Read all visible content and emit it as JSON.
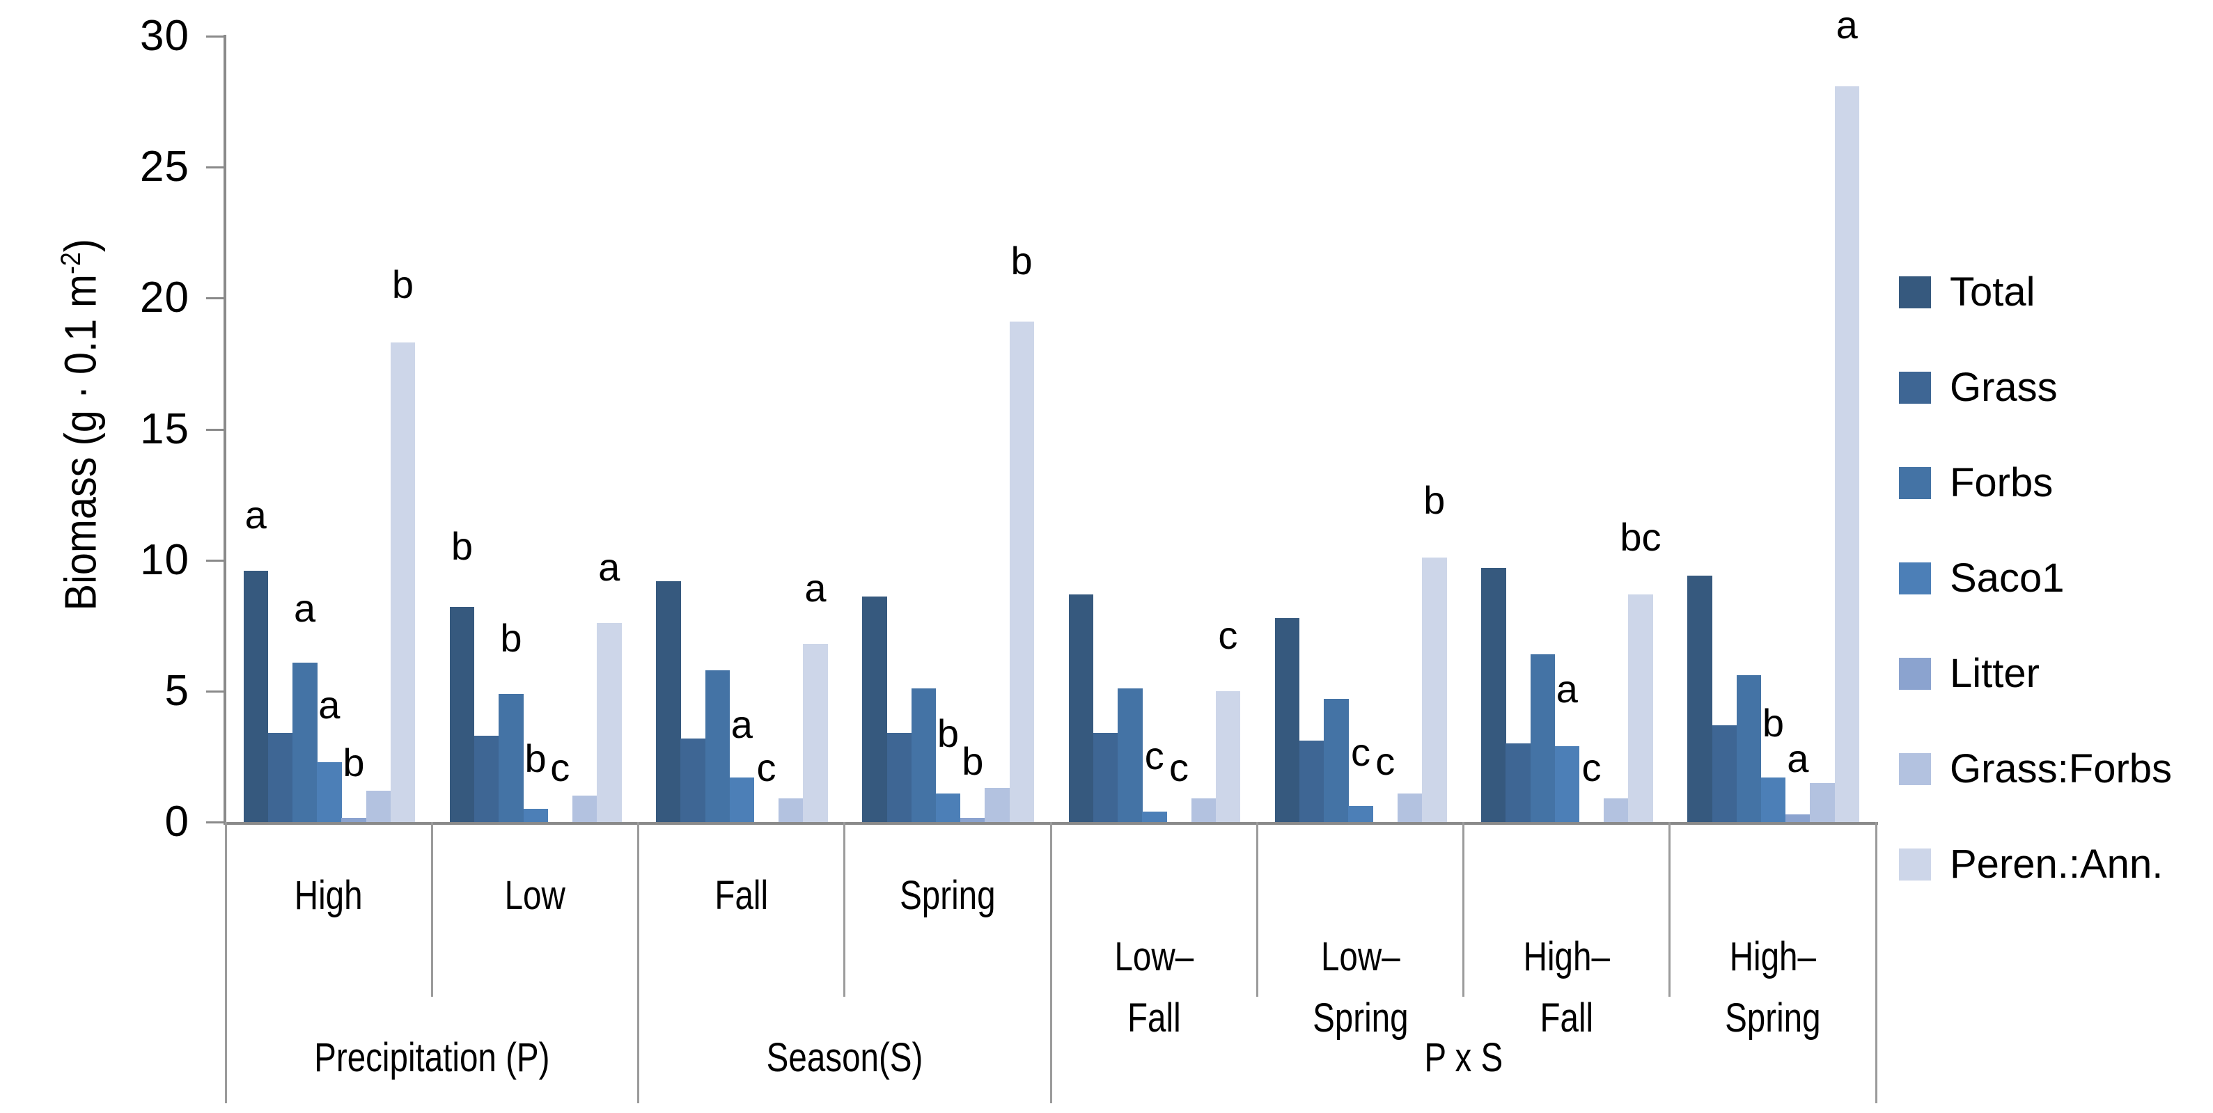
{
  "page": {
    "background": "#ffffff"
  },
  "chart_data": {
    "type": "bar",
    "title": "",
    "ylabel": {
      "prefix": "Biomass (g · 0.1 m",
      "superscript": "-2",
      "suffix": ")"
    },
    "xlabel": "",
    "ylim": [
      0,
      30
    ],
    "yticks": [
      0,
      5,
      10,
      15,
      20,
      25,
      30
    ],
    "grid": false,
    "legend_position": "right-middle",
    "axis_color": "#8a8a8a",
    "separator_color": "#9b9b9b",
    "text_color": "#000000",
    "series": [
      {
        "name": "Total",
        "color": "#36597E"
      },
      {
        "name": "Grass",
        "color": "#3E6694"
      },
      {
        "name": "Forbs",
        "color": "#4473A5"
      },
      {
        "name": "Saco1",
        "color": "#4C7FB7"
      },
      {
        "name": "Litter",
        "color": "#8BA3CF"
      },
      {
        "name": "Grass:Forbs",
        "color": "#B3C2E0"
      },
      {
        "name": "Peren.:Ann.",
        "color": "#CDD6E9"
      }
    ],
    "sections": [
      {
        "label": "Precipitation (P)",
        "groups": [
          {
            "label_lines": [
              "High"
            ],
            "values": [
              9.6,
              3.4,
              6.1,
              2.3,
              0.15,
              1.2,
              18.3
            ],
            "letters": [
              {
                "series": 0,
                "text": "a",
                "y": 11.0
              },
              {
                "series": 2,
                "text": "a",
                "y": 7.45
              },
              {
                "series": 3,
                "text": "a",
                "y": 3.75
              },
              {
                "series": 4,
                "text": "b",
                "y": 1.55
              },
              {
                "series": 6,
                "text": "b",
                "y": 19.8
              }
            ]
          },
          {
            "label_lines": [
              "Low"
            ],
            "values": [
              8.2,
              3.3,
              4.9,
              0.5,
              0,
              1.0,
              7.6
            ],
            "letters": [
              {
                "series": 0,
                "text": "b",
                "y": 9.8
              },
              {
                "series": 2,
                "text": "b",
                "y": 6.3
              },
              {
                "series": 3,
                "text": "b",
                "y": 1.7
              },
              {
                "series": 4,
                "text": "c",
                "y": 1.35
              },
              {
                "series": 6,
                "text": "a",
                "y": 9.0
              }
            ]
          }
        ]
      },
      {
        "label": "Season(S)",
        "groups": [
          {
            "label_lines": [
              "Fall"
            ],
            "values": [
              9.2,
              3.2,
              5.8,
              1.7,
              0,
              0.9,
              6.8
            ],
            "letters": [
              {
                "series": 3,
                "text": "a",
                "y": 3.0
              },
              {
                "series": 4,
                "text": "c",
                "y": 1.35
              },
              {
                "series": 6,
                "text": "a",
                "y": 8.2
              }
            ]
          },
          {
            "label_lines": [
              "Spring"
            ],
            "values": [
              8.6,
              3.4,
              5.1,
              1.1,
              0.15,
              1.3,
              19.1
            ],
            "letters": [
              {
                "series": 3,
                "text": "b",
                "y": 2.65
              },
              {
                "series": 4,
                "text": "b",
                "y": 1.6
              },
              {
                "series": 6,
                "text": "b",
                "y": 20.7
              }
            ]
          }
        ]
      },
      {
        "label": "P x S",
        "groups": [
          {
            "label_lines": [
              "Low–",
              "Fall"
            ],
            "values": [
              8.7,
              3.4,
              5.1,
              0.4,
              0,
              0.9,
              5.0
            ],
            "letters": [
              {
                "series": 3,
                "text": "c",
                "y": 1.8
              },
              {
                "series": 4,
                "text": "c",
                "y": 1.35
              },
              {
                "series": 6,
                "text": "c",
                "y": 6.4
              }
            ]
          },
          {
            "label_lines": [
              "Low–",
              "Spring"
            ],
            "values": [
              7.8,
              3.1,
              4.7,
              0.6,
              0,
              1.1,
              10.1
            ],
            "letters": [
              {
                "series": 3,
                "text": "c",
                "y": 1.95
              },
              {
                "series": 4,
                "text": "c",
                "y": 1.6
              },
              {
                "series": 6,
                "text": "b",
                "y": 11.55
              }
            ]
          },
          {
            "label_lines": [
              "High–",
              "Fall"
            ],
            "values": [
              9.7,
              3.0,
              6.4,
              2.9,
              0,
              0.9,
              8.7
            ],
            "letters": [
              {
                "series": 3,
                "text": "a",
                "y": 4.35
              },
              {
                "series": 4,
                "text": "c",
                "y": 1.35
              },
              {
                "series": 6,
                "text": "bc",
                "y": 10.15
              }
            ]
          },
          {
            "label_lines": [
              "High–",
              "Spring"
            ],
            "values": [
              9.4,
              3.7,
              5.6,
              1.7,
              0.3,
              1.5,
              28.1
            ],
            "letters": [
              {
                "series": 3,
                "text": "b",
                "y": 3.05
              },
              {
                "series": 4,
                "text": "a",
                "y": 1.7
              },
              {
                "series": 6,
                "text": "a",
                "y": 29.7
              }
            ]
          }
        ]
      }
    ]
  }
}
